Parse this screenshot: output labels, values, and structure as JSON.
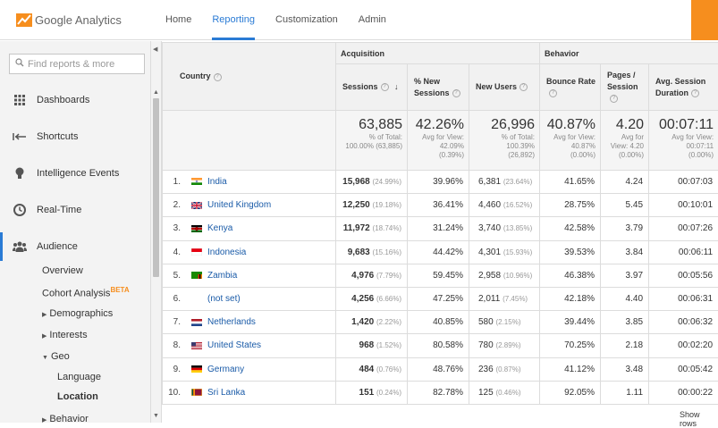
{
  "app": {
    "brand": "Google Analytics"
  },
  "nav": {
    "tabs": [
      "Home",
      "Reporting",
      "Customization",
      "Admin"
    ],
    "active": "Reporting"
  },
  "sidebar": {
    "search_placeholder": "Find reports & more",
    "items": [
      {
        "label": "Dashboards",
        "icon": "grid-icon"
      },
      {
        "label": "Shortcuts",
        "icon": "shortcut-arrow-icon"
      },
      {
        "label": "Intelligence Events",
        "icon": "lightbulb-icon"
      },
      {
        "label": "Real-Time",
        "icon": "clock-icon"
      },
      {
        "label": "Audience",
        "icon": "people-icon"
      }
    ],
    "audience_sub": {
      "overview": "Overview",
      "cohort": "Cohort Analysis",
      "beta": "BETA",
      "demographics": "Demographics",
      "interests": "Interests",
      "geo": "Geo",
      "language": "Language",
      "location": "Location",
      "behavior": "Behavior"
    }
  },
  "table": {
    "groups": {
      "acquisition": "Acquisition",
      "behavior": "Behavior"
    },
    "headers": {
      "country": "Country",
      "sessions": "Sessions",
      "new_sessions": "% New Sessions",
      "new_users": "New Users",
      "bounce_rate": "Bounce Rate",
      "pages_session": "Pages / Session",
      "avg_duration": "Avg. Session Duration"
    },
    "totals": {
      "sessions": "63,885",
      "sessions_sub1": "% of Total:",
      "sessions_sub2": "100.00% (63,885)",
      "new_sessions": "42.26%",
      "new_sessions_sub1": "Avg for View:",
      "new_sessions_sub2": "42.09%",
      "new_sessions_sub3": "(0.39%)",
      "new_users": "26,996",
      "new_users_sub1": "% of Total:",
      "new_users_sub2": "100.39%",
      "new_users_sub3": "(26,892)",
      "bounce": "40.87%",
      "bounce_sub1": "Avg for View:",
      "bounce_sub2": "40.87%",
      "bounce_sub3": "(0.00%)",
      "pages": "4.20",
      "pages_sub1": "Avg for",
      "pages_sub2": "View: 4.20",
      "pages_sub3": "(0.00%)",
      "duration": "00:07:11",
      "duration_sub1": "Avg for View:",
      "duration_sub2": "00:07:11",
      "duration_sub3": "(0.00%)"
    },
    "rows": [
      {
        "idx": "1.",
        "country": "India",
        "flag": "india",
        "sessions": "15,968",
        "sessions_pct": "(24.99%)",
        "new_sessions": "39.96%",
        "new_users": "6,381",
        "new_users_pct": "(23.64%)",
        "bounce": "41.65%",
        "pages": "4.24",
        "duration": "00:07:03"
      },
      {
        "idx": "2.",
        "country": "United Kingdom",
        "flag": "uk",
        "sessions": "12,250",
        "sessions_pct": "(19.18%)",
        "new_sessions": "36.41%",
        "new_users": "4,460",
        "new_users_pct": "(16.52%)",
        "bounce": "28.75%",
        "pages": "5.45",
        "duration": "00:10:01"
      },
      {
        "idx": "3.",
        "country": "Kenya",
        "flag": "kenya",
        "sessions": "11,972",
        "sessions_pct": "(18.74%)",
        "new_sessions": "31.24%",
        "new_users": "3,740",
        "new_users_pct": "(13.85%)",
        "bounce": "42.58%",
        "pages": "3.79",
        "duration": "00:07:26"
      },
      {
        "idx": "4.",
        "country": "Indonesia",
        "flag": "indonesia",
        "sessions": "9,683",
        "sessions_pct": "(15.16%)",
        "new_sessions": "44.42%",
        "new_users": "4,301",
        "new_users_pct": "(15.93%)",
        "bounce": "39.53%",
        "pages": "3.84",
        "duration": "00:06:11"
      },
      {
        "idx": "5.",
        "country": "Zambia",
        "flag": "zambia",
        "sessions": "4,976",
        "sessions_pct": "(7.79%)",
        "new_sessions": "59.45%",
        "new_users": "2,958",
        "new_users_pct": "(10.96%)",
        "bounce": "46.38%",
        "pages": "3.97",
        "duration": "00:05:56"
      },
      {
        "idx": "6.",
        "country": "(not set)",
        "flag": "none",
        "sessions": "4,256",
        "sessions_pct": "(6.66%)",
        "new_sessions": "47.25%",
        "new_users": "2,011",
        "new_users_pct": "(7.45%)",
        "bounce": "42.18%",
        "pages": "4.40",
        "duration": "00:06:31"
      },
      {
        "idx": "7.",
        "country": "Netherlands",
        "flag": "netherlands",
        "sessions": "1,420",
        "sessions_pct": "(2.22%)",
        "new_sessions": "40.85%",
        "new_users": "580",
        "new_users_pct": "(2.15%)",
        "bounce": "39.44%",
        "pages": "3.85",
        "duration": "00:06:32"
      },
      {
        "idx": "8.",
        "country": "United States",
        "flag": "us",
        "sessions": "968",
        "sessions_pct": "(1.52%)",
        "new_sessions": "80.58%",
        "new_users": "780",
        "new_users_pct": "(2.89%)",
        "bounce": "70.25%",
        "pages": "2.18",
        "duration": "00:02:20"
      },
      {
        "idx": "9.",
        "country": "Germany",
        "flag": "germany",
        "sessions": "484",
        "sessions_pct": "(0.76%)",
        "new_sessions": "48.76%",
        "new_users": "236",
        "new_users_pct": "(0.87%)",
        "bounce": "41.12%",
        "pages": "3.48",
        "duration": "00:05:42"
      },
      {
        "idx": "10.",
        "country": "Sri Lanka",
        "flag": "srilanka",
        "sessions": "151",
        "sessions_pct": "(0.24%)",
        "new_sessions": "82.78%",
        "new_users": "125",
        "new_users_pct": "(0.46%)",
        "bounce": "92.05%",
        "pages": "1.11",
        "duration": "00:00:22"
      }
    ],
    "show_rows": "Show rows"
  },
  "colors": {
    "accent": "#2a7bd5",
    "brand_orange": "#f68e1e",
    "link": "#1a5ba8"
  }
}
